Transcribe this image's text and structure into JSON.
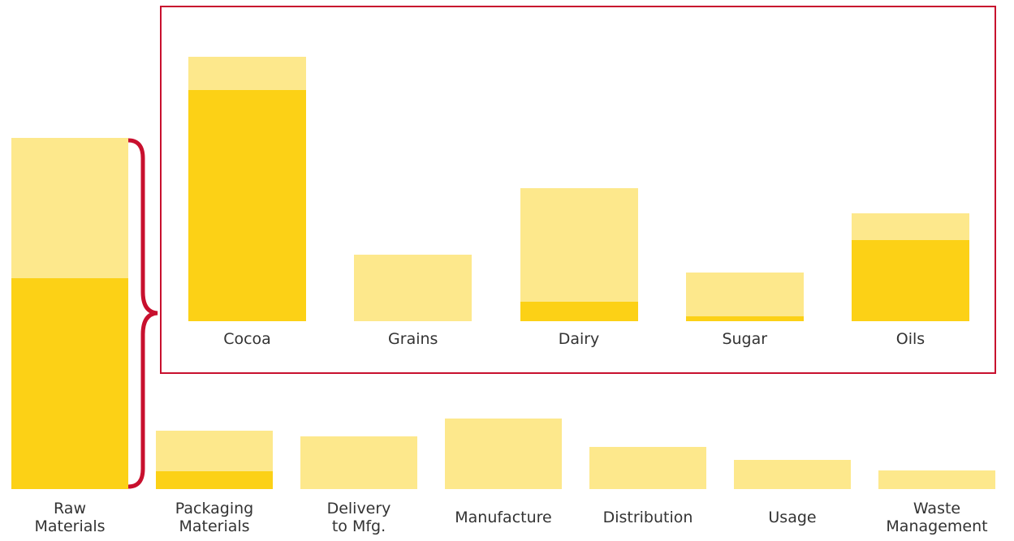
{
  "chart_data": [
    {
      "type": "stacked-bar",
      "categories": [
        "Raw\nMaterials",
        "Packaging\nMaterials",
        "Delivery\nto Mfg.",
        "Manufacture",
        "Distribution",
        "Usage",
        "Waste\nManagement"
      ],
      "series": [
        {
          "color": "#fcd116",
          "values": [
            260,
            22,
            0,
            0,
            0,
            0,
            0
          ]
        },
        {
          "color": "#fde88c",
          "values": [
            173,
            50,
            65,
            87,
            52,
            36,
            23
          ]
        }
      ],
      "ylim": [
        0,
        433
      ]
    },
    {
      "type": "stacked-bar",
      "categories": [
        "Cocoa",
        "Grains",
        "Dairy",
        "Sugar",
        "Oils"
      ],
      "series": [
        {
          "color": "#fcd116",
          "values": [
            285,
            0,
            24,
            6,
            100
          ]
        },
        {
          "color": "#fde88c",
          "values": [
            41,
            82,
            140,
            54,
            33
          ]
        }
      ],
      "ylim": [
        0,
        326
      ]
    }
  ]
}
